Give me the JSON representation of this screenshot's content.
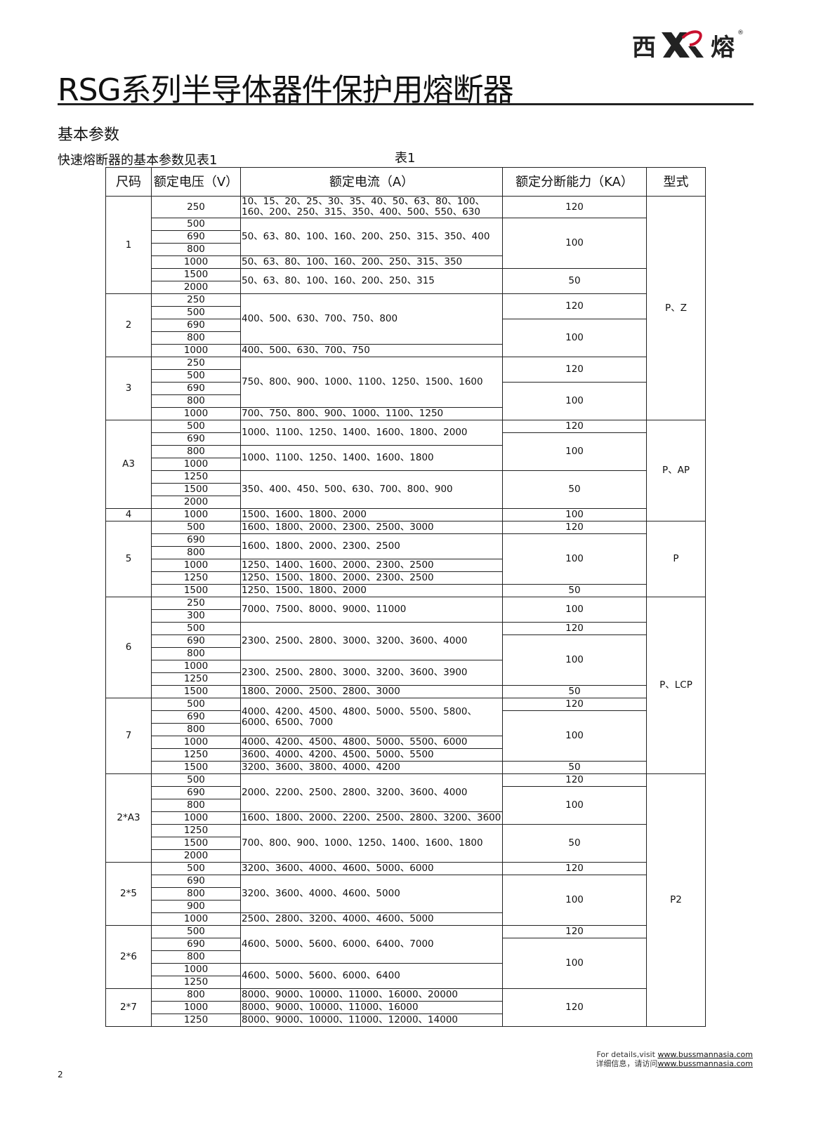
{
  "logo": {
    "left_char": "西",
    "right_char": "熔",
    "mark": "®",
    "colors": {
      "red": "#c8102e",
      "dark": "#222222"
    }
  },
  "title": "RSG系列半导体器件保护用熔断器",
  "section": "基本参数",
  "intro": "快速熔断器的基本参数见表1",
  "caption": "表1",
  "headers": [
    "尺码",
    "额定电压（V）",
    "额定电流（A）",
    "额定分断能力（KA）",
    "型式"
  ],
  "sizes": [
    {
      "size": "1",
      "voltages": [
        "250",
        "500",
        "690",
        "800",
        "1000",
        "1500",
        "2000"
      ],
      "current": [
        {
          "text": "10、15、20、25、30、35、40、50、63、80、100、160、200、250、315、350、400、500、550、630",
          "span": 1
        },
        {
          "text": "50、63、80、100、160、200、250、315、350、400",
          "span": 3
        },
        {
          "text": "50、63、80、100、160、200、250、315、350",
          "span": 1
        },
        {
          "text": "50、63、80、100、160、200、250、315",
          "span": 2
        }
      ],
      "ka": [
        {
          "value": "120",
          "span": 1
        },
        {
          "value": "100",
          "span": 4
        },
        {
          "value": "50",
          "span": 2
        }
      ]
    },
    {
      "size": "2",
      "voltages": [
        "250",
        "500",
        "690",
        "800",
        "1000"
      ],
      "current": [
        {
          "text": "400、500、630、700、750、800",
          "span": 4
        },
        {
          "text": "400、500、630、700、750",
          "span": 1
        }
      ],
      "ka": [
        {
          "value": "120",
          "span": 2
        },
        {
          "value": "100",
          "span": 3
        }
      ]
    },
    {
      "size": "3",
      "voltages": [
        "250",
        "500",
        "690",
        "800",
        "1000"
      ],
      "current": [
        {
          "text": "750、800、900、1000、1100、1250、1500、1600",
          "span": 4
        },
        {
          "text": "700、750、800、900、1000、1100、1250",
          "span": 1
        }
      ],
      "ka": [
        {
          "value": "120",
          "span": 2
        },
        {
          "value": "100",
          "span": 3
        }
      ]
    },
    {
      "size": "A3",
      "voltages": [
        "500",
        "690",
        "800",
        "1000",
        "1250",
        "1500",
        "2000"
      ],
      "current": [
        {
          "text": "1000、1100、1250、1400、1600、1800、2000",
          "span": 2
        },
        {
          "text": "1000、1100、1250、1400、1600、1800",
          "span": 2
        },
        {
          "text": "350、400、450、500、630、700、800、900",
          "span": 3
        }
      ],
      "ka": [
        {
          "value": "120",
          "span": 1
        },
        {
          "value": "100",
          "span": 3
        },
        {
          "value": "50",
          "span": 3
        }
      ]
    },
    {
      "size": "4",
      "voltages": [
        "1000"
      ],
      "current": [
        {
          "text": "1500、1600、1800、2000",
          "span": 1
        }
      ],
      "ka": [
        {
          "value": "100",
          "span": 1
        }
      ]
    },
    {
      "size": "5",
      "voltages": [
        "500",
        "690",
        "800",
        "1000",
        "1250",
        "1500"
      ],
      "current": [
        {
          "text": "1600、1800、2000、2300、2500、3000",
          "span": 1
        },
        {
          "text": "1600、1800、2000、2300、2500",
          "span": 2
        },
        {
          "text": "1250、1400、1600、2000、2300、2500",
          "span": 1
        },
        {
          "text": "1250、1500、1800、2000、2300、2500",
          "span": 1
        },
        {
          "text": "1250、1500、1800、2000",
          "span": 1
        }
      ],
      "ka": [
        {
          "value": "120",
          "span": 1
        },
        {
          "value": "100",
          "span": 4
        },
        {
          "value": "50",
          "span": 1
        }
      ]
    },
    {
      "size": "6",
      "voltages": [
        "250",
        "300",
        "500",
        "690",
        "800",
        "1000",
        "1250",
        "1500"
      ],
      "current": [
        {
          "text": "7000、7500、8000、9000、11000",
          "span": 2
        },
        {
          "text": "2300、2500、2800、3000、3200、3600、4000",
          "span": 3
        },
        {
          "text": "2300、2500、2800、3000、3200、3600、3900",
          "span": 2
        },
        {
          "text": "1800、2000、2500、2800、3000",
          "span": 1
        }
      ],
      "ka": [
        {
          "value": "100",
          "span": 2
        },
        {
          "value": "120",
          "span": 1
        },
        {
          "value": "100",
          "span": 4
        },
        {
          "value": "50",
          "span": 1
        }
      ]
    },
    {
      "size": "7",
      "voltages": [
        "500",
        "690",
        "800",
        "1000",
        "1250",
        "1500"
      ],
      "current": [
        {
          "text": "4000、4200、4500、4800、5000、5500、5800、6000、6500、7000",
          "span": 3
        },
        {
          "text": "4000、4200、4500、4800、5000、5500、6000",
          "span": 1
        },
        {
          "text": "3600、4000、4200、4500、5000、5500",
          "span": 1
        },
        {
          "text": "3200、3600、3800、4000、4200",
          "span": 1
        }
      ],
      "ka": [
        {
          "value": "120",
          "span": 1
        },
        {
          "value": "100",
          "span": 4
        },
        {
          "value": "50",
          "span": 1
        }
      ]
    },
    {
      "size": "2*A3",
      "voltages": [
        "500",
        "690",
        "800",
        "1000",
        "1250",
        "1500",
        "2000"
      ],
      "current": [
        {
          "text": "2000、2200、2500、2800、3200、3600、4000",
          "span": 3
        },
        {
          "text": "1600、1800、2000、2200、2500、2800、3200、3600",
          "span": 1
        },
        {
          "text": "700、800、900、1000、1250、1400、1600、1800",
          "span": 3
        }
      ],
      "ka": [
        {
          "value": "120",
          "span": 1
        },
        {
          "value": "100",
          "span": 3
        },
        {
          "value": "50",
          "span": 3
        }
      ]
    },
    {
      "size": "2*5",
      "voltages": [
        "500",
        "690",
        "800",
        "900",
        "1000"
      ],
      "current": [
        {
          "text": "3200、3600、4000、4600、5000、6000",
          "span": 1
        },
        {
          "text": "3200、3600、4000、4600、5000",
          "span": 3
        },
        {
          "text": "2500、2800、3200、4000、4600、5000",
          "span": 1
        }
      ],
      "ka": [
        {
          "value": "120",
          "span": 1
        },
        {
          "value": "100",
          "span": 4
        }
      ]
    },
    {
      "size": "2*6",
      "voltages": [
        "500",
        "690",
        "800",
        "1000",
        "1250"
      ],
      "current": [
        {
          "text": "4600、5000、5600、6000、6400、7000",
          "span": 3
        },
        {
          "text": "4600、5000、5600、6000、6400",
          "span": 2
        }
      ],
      "ka": [
        {
          "value": "120",
          "span": 1
        },
        {
          "value": "100",
          "span": 4
        }
      ]
    },
    {
      "size": "2*7",
      "voltages": [
        "800",
        "1000",
        "1250"
      ],
      "current": [
        {
          "text": "8000、9000、10000、11000、16000、20000",
          "span": 1
        },
        {
          "text": "8000、9000、10000、11000、16000",
          "span": 1
        },
        {
          "text": "8000、9000、10000、11000、12000、14000",
          "span": 1
        }
      ],
      "ka": [
        {
          "value": "120",
          "span": 3
        }
      ]
    }
  ],
  "types": [
    {
      "label": "P、Z",
      "sizes": 3
    },
    {
      "label": "P、AP",
      "sizes": 2
    },
    {
      "label": "P",
      "sizes": 1
    },
    {
      "label": "P、LCP",
      "sizes": 2
    },
    {
      "label": "P2",
      "sizes": 4
    }
  ],
  "page_number": "2",
  "footer": {
    "en_prefix": "For details,visit ",
    "cn_prefix": "详细信息，请访问",
    "url": "www.bussmannasia.com"
  }
}
